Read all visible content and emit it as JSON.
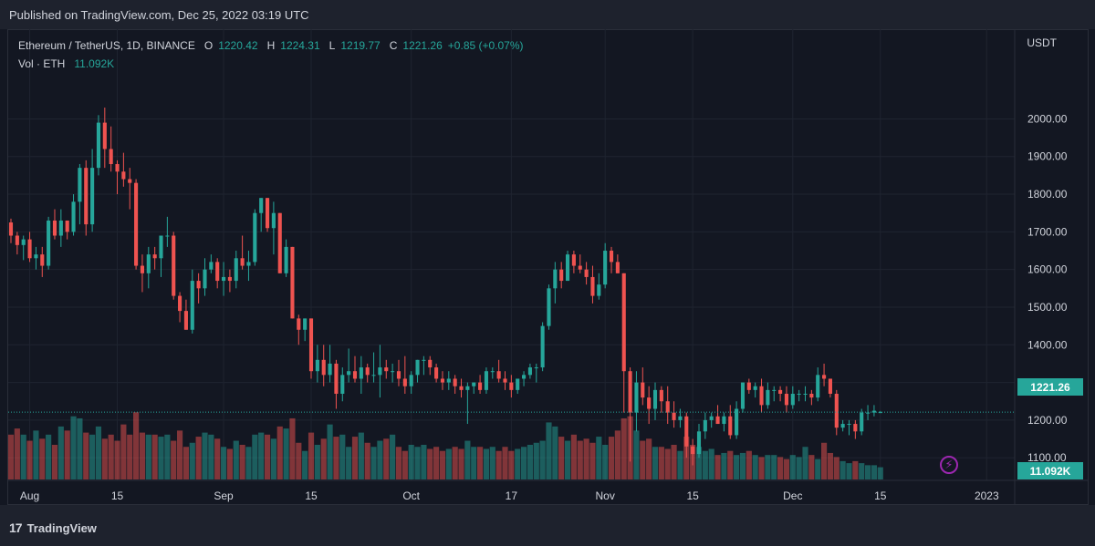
{
  "header": {
    "published": "Published on TradingView.com, Dec 25, 2022 03:19 UTC"
  },
  "legend": {
    "symbol": "Ethereum / TetherUS, 1D, BINANCE",
    "o_label": "O",
    "o_value": "1220.42",
    "h_label": "H",
    "h_value": "1224.31",
    "l_label": "L",
    "l_value": "1219.77",
    "c_label": "C",
    "c_value": "1221.26",
    "change": "+0.85 (+0.07%)",
    "vol_label": "Vol · ETH",
    "vol_value": "11.092K"
  },
  "currency": "USDT",
  "last_price_badge": "1221.26",
  "last_volume_badge": "11.092K",
  "footer": {
    "brand": "TradingView",
    "logo_mark": "17"
  },
  "colors": {
    "up": "#26a69a",
    "down": "#ef5350",
    "background": "#131722",
    "grid": "#1f2430"
  },
  "chart_data": {
    "type": "candlestick",
    "y_ticks": [
      "2000.00",
      "1900.00",
      "1800.00",
      "1700.00",
      "1600.00",
      "1500.00",
      "1400.00",
      "1300.00",
      "1200.00",
      "1100.00"
    ],
    "y_tick_values": [
      2000,
      1900,
      1800,
      1700,
      1600,
      1500,
      1400,
      1300,
      1200,
      1100
    ],
    "ylim": [
      1040,
      2110
    ],
    "x_ticks": [
      {
        "label": "Aug",
        "date": "2022-08-01"
      },
      {
        "label": "15",
        "date": "2022-08-15"
      },
      {
        "label": "Sep",
        "date": "2022-09-01"
      },
      {
        "label": "15",
        "date": "2022-09-15"
      },
      {
        "label": "Oct",
        "date": "2022-10-01"
      },
      {
        "label": "17",
        "date": "2022-10-17"
      },
      {
        "label": "Nov",
        "date": "2022-11-01"
      },
      {
        "label": "15",
        "date": "2022-11-15"
      },
      {
        "label": "Dec",
        "date": "2022-12-01"
      },
      {
        "label": "15",
        "date": "2022-12-15"
      },
      {
        "label": "2023",
        "date": "2023-01-01"
      }
    ],
    "first_date": "2022-07-29",
    "last_price": 1221.26,
    "ohlc": [
      [
        1725,
        1735,
        1670,
        1690
      ],
      [
        1690,
        1700,
        1640,
        1665
      ],
      [
        1665,
        1690,
        1625,
        1680
      ],
      [
        1680,
        1700,
        1620,
        1630
      ],
      [
        1630,
        1660,
        1600,
        1640
      ],
      [
        1640,
        1660,
        1580,
        1610
      ],
      [
        1610,
        1740,
        1600,
        1730
      ],
      [
        1730,
        1760,
        1680,
        1690
      ],
      [
        1690,
        1760,
        1660,
        1730
      ],
      [
        1730,
        1730,
        1680,
        1700
      ],
      [
        1700,
        1800,
        1690,
        1780
      ],
      [
        1780,
        1880,
        1720,
        1870
      ],
      [
        1870,
        1890,
        1690,
        1720
      ],
      [
        1720,
        1920,
        1700,
        1870
      ],
      [
        1870,
        2010,
        1850,
        1990
      ],
      [
        1990,
        2030,
        1870,
        1920
      ],
      [
        1920,
        1980,
        1860,
        1880
      ],
      [
        1880,
        1890,
        1800,
        1860
      ],
      [
        1860,
        1910,
        1820,
        1840
      ],
      [
        1840,
        1870,
        1760,
        1830
      ],
      [
        1830,
        1840,
        1600,
        1610
      ],
      [
        1610,
        1640,
        1540,
        1590
      ],
      [
        1590,
        1660,
        1550,
        1640
      ],
      [
        1640,
        1660,
        1600,
        1630
      ],
      [
        1630,
        1690,
        1580,
        1690
      ],
      [
        1690,
        1740,
        1660,
        1690
      ],
      [
        1690,
        1700,
        1520,
        1530
      ],
      [
        1530,
        1540,
        1460,
        1490
      ],
      [
        1490,
        1520,
        1440,
        1440
      ],
      [
        1440,
        1600,
        1430,
        1570
      ],
      [
        1570,
        1590,
        1510,
        1550
      ],
      [
        1550,
        1630,
        1530,
        1600
      ],
      [
        1600,
        1640,
        1590,
        1620
      ],
      [
        1620,
        1630,
        1550,
        1570
      ],
      [
        1570,
        1620,
        1530,
        1580
      ],
      [
        1580,
        1600,
        1540,
        1570
      ],
      [
        1570,
        1650,
        1550,
        1630
      ],
      [
        1630,
        1690,
        1600,
        1610
      ],
      [
        1610,
        1650,
        1570,
        1620
      ],
      [
        1620,
        1760,
        1610,
        1750
      ],
      [
        1750,
        1790,
        1700,
        1790
      ],
      [
        1790,
        1790,
        1700,
        1710
      ],
      [
        1710,
        1780,
        1640,
        1750
      ],
      [
        1750,
        1750,
        1590,
        1590
      ],
      [
        1590,
        1680,
        1580,
        1660
      ],
      [
        1660,
        1660,
        1470,
        1470
      ],
      [
        1470,
        1480,
        1400,
        1440
      ],
      [
        1440,
        1470,
        1410,
        1470
      ],
      [
        1470,
        1470,
        1310,
        1330
      ],
      [
        1330,
        1400,
        1300,
        1360
      ],
      [
        1360,
        1400,
        1290,
        1320
      ],
      [
        1320,
        1400,
        1300,
        1350
      ],
      [
        1350,
        1360,
        1230,
        1270
      ],
      [
        1270,
        1340,
        1250,
        1320
      ],
      [
        1320,
        1390,
        1300,
        1330
      ],
      [
        1330,
        1370,
        1300,
        1310
      ],
      [
        1310,
        1370,
        1270,
        1340
      ],
      [
        1340,
        1350,
        1300,
        1320
      ],
      [
        1320,
        1380,
        1300,
        1320
      ],
      [
        1320,
        1400,
        1260,
        1340
      ],
      [
        1340,
        1360,
        1310,
        1330
      ],
      [
        1330,
        1350,
        1300,
        1330
      ],
      [
        1330,
        1360,
        1290,
        1310
      ],
      [
        1310,
        1370,
        1270,
        1290
      ],
      [
        1290,
        1330,
        1270,
        1320
      ],
      [
        1320,
        1360,
        1300,
        1360
      ],
      [
        1360,
        1370,
        1320,
        1360
      ],
      [
        1360,
        1370,
        1320,
        1340
      ],
      [
        1340,
        1350,
        1300,
        1310
      ],
      [
        1310,
        1330,
        1280,
        1300
      ],
      [
        1300,
        1330,
        1280,
        1310
      ],
      [
        1310,
        1320,
        1270,
        1290
      ],
      [
        1290,
        1310,
        1260,
        1280
      ],
      [
        1280,
        1300,
        1190,
        1290
      ],
      [
        1290,
        1300,
        1270,
        1300
      ],
      [
        1300,
        1320,
        1270,
        1280
      ],
      [
        1280,
        1340,
        1270,
        1330
      ],
      [
        1330,
        1340,
        1310,
        1330
      ],
      [
        1330,
        1360,
        1300,
        1310
      ],
      [
        1310,
        1330,
        1280,
        1300
      ],
      [
        1300,
        1320,
        1260,
        1280
      ],
      [
        1280,
        1310,
        1270,
        1310
      ],
      [
        1310,
        1330,
        1290,
        1320
      ],
      [
        1320,
        1350,
        1310,
        1340
      ],
      [
        1340,
        1350,
        1300,
        1340
      ],
      [
        1340,
        1460,
        1330,
        1450
      ],
      [
        1450,
        1560,
        1440,
        1550
      ],
      [
        1550,
        1620,
        1510,
        1600
      ],
      [
        1600,
        1620,
        1550,
        1570
      ],
      [
        1570,
        1650,
        1570,
        1640
      ],
      [
        1640,
        1650,
        1590,
        1610
      ],
      [
        1610,
        1640,
        1590,
        1600
      ],
      [
        1600,
        1620,
        1560,
        1580
      ],
      [
        1580,
        1610,
        1510,
        1530
      ],
      [
        1530,
        1590,
        1520,
        1560
      ],
      [
        1560,
        1670,
        1550,
        1650
      ],
      [
        1650,
        1660,
        1590,
        1620
      ],
      [
        1620,
        1640,
        1590,
        1590
      ],
      [
        1590,
        1590,
        1220,
        1330
      ],
      [
        1330,
        1340,
        1090,
        1220
      ],
      [
        1220,
        1330,
        1170,
        1300
      ],
      [
        1300,
        1340,
        1240,
        1260
      ],
      [
        1260,
        1290,
        1190,
        1230
      ],
      [
        1230,
        1300,
        1200,
        1280
      ],
      [
        1280,
        1290,
        1220,
        1250
      ],
      [
        1250,
        1290,
        1190,
        1220
      ],
      [
        1220,
        1250,
        1180,
        1200
      ],
      [
        1200,
        1230,
        1180,
        1210
      ],
      [
        1210,
        1220,
        1100,
        1130
      ],
      [
        1130,
        1150,
        1080,
        1110
      ],
      [
        1110,
        1190,
        1100,
        1170
      ],
      [
        1170,
        1220,
        1150,
        1200
      ],
      [
        1200,
        1220,
        1180,
        1210
      ],
      [
        1210,
        1240,
        1190,
        1190
      ],
      [
        1190,
        1220,
        1170,
        1210
      ],
      [
        1210,
        1240,
        1150,
        1160
      ],
      [
        1160,
        1250,
        1150,
        1230
      ],
      [
        1230,
        1300,
        1220,
        1300
      ],
      [
        1300,
        1310,
        1270,
        1280
      ],
      [
        1280,
        1300,
        1260,
        1290
      ],
      [
        1290,
        1310,
        1220,
        1240
      ],
      [
        1240,
        1300,
        1230,
        1280
      ],
      [
        1280,
        1290,
        1250,
        1280
      ],
      [
        1280,
        1290,
        1250,
        1270
      ],
      [
        1270,
        1290,
        1220,
        1240
      ],
      [
        1240,
        1290,
        1230,
        1270
      ],
      [
        1270,
        1280,
        1250,
        1270
      ],
      [
        1270,
        1290,
        1250,
        1270
      ],
      [
        1270,
        1280,
        1240,
        1260
      ],
      [
        1260,
        1340,
        1250,
        1320
      ],
      [
        1320,
        1350,
        1290,
        1310
      ],
      [
        1310,
        1310,
        1260,
        1270
      ],
      [
        1270,
        1280,
        1160,
        1180
      ],
      [
        1180,
        1200,
        1170,
        1190
      ],
      [
        1190,
        1200,
        1160,
        1190
      ],
      [
        1190,
        1200,
        1150,
        1170
      ],
      [
        1170,
        1230,
        1160,
        1220
      ],
      [
        1220,
        1240,
        1200,
        1220
      ],
      [
        1220,
        1240,
        1210,
        1225
      ],
      [
        1220.42,
        1224.31,
        1219.77,
        1221.26
      ]
    ],
    "volume": [
      1.1,
      1.25,
      1.1,
      0.95,
      1.2,
      1.0,
      1.1,
      0.85,
      1.3,
      1.2,
      1.55,
      1.5,
      1.15,
      1.1,
      1.3,
      1.0,
      1.1,
      0.95,
      1.35,
      1.1,
      1.65,
      1.15,
      1.1,
      1.1,
      1.05,
      1.1,
      0.95,
      1.2,
      0.8,
      0.9,
      1.05,
      1.15,
      1.1,
      1.0,
      0.8,
      0.75,
      0.95,
      0.85,
      0.8,
      1.1,
      1.15,
      1.1,
      1.0,
      1.3,
      1.25,
      1.5,
      0.9,
      0.7,
      1.15,
      0.85,
      1.0,
      1.35,
      1.05,
      1.1,
      0.8,
      1.05,
      1.15,
      0.9,
      0.8,
      0.95,
      1.0,
      1.1,
      0.8,
      0.7,
      0.85,
      0.8,
      0.85,
      0.75,
      0.8,
      0.7,
      0.75,
      0.8,
      0.75,
      0.95,
      0.8,
      0.8,
      0.75,
      0.8,
      0.7,
      0.8,
      0.7,
      0.75,
      0.8,
      0.85,
      0.9,
      0.95,
      1.4,
      1.3,
      1.05,
      0.95,
      1.1,
      0.95,
      1.0,
      0.9,
      1.05,
      0.85,
      1.05,
      1.2,
      1.5,
      1.55,
      1.2,
      0.95,
      1.0,
      0.8,
      0.8,
      0.75,
      0.85,
      0.7,
      1.05,
      0.85,
      0.8,
      0.7,
      0.75,
      0.6,
      0.65,
      0.7,
      0.6,
      0.65,
      0.7,
      0.6,
      0.55,
      0.6,
      0.6,
      0.55,
      0.5,
      0.6,
      0.55,
      0.8,
      0.6,
      0.5,
      0.9,
      0.65,
      0.55,
      0.45,
      0.4,
      0.45,
      0.4,
      0.35,
      0.35,
      0.3
    ],
    "volume_scale_max": 1.7,
    "volume_last": "11.092K"
  }
}
